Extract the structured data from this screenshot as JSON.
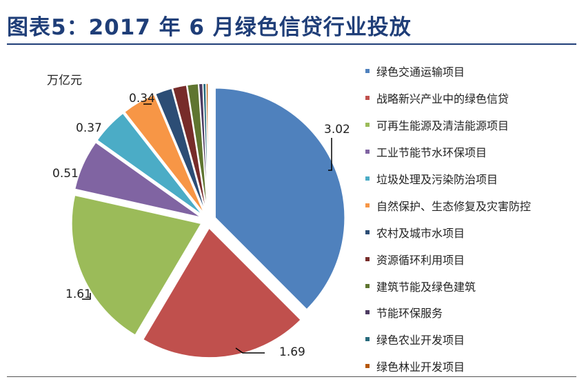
{
  "title": "图表5：2017 年 6 月绿色信贷行业投放",
  "chart_data": {
    "type": "pie",
    "unit_label": "万亿元",
    "legend_position": "right",
    "slices": [
      {
        "label": "绿色交通运输项目",
        "value": 3.02,
        "value_label": "3.02",
        "color": "#4f81bd"
      },
      {
        "label": "战略新兴产业中的绿色信贷",
        "value": 1.69,
        "value_label": "1.69",
        "color": "#c0504d"
      },
      {
        "label": "可再生能源及清洁能源项目",
        "value": 1.61,
        "value_label": "1.61",
        "color": "#9bbb59"
      },
      {
        "label": "工业节能节水环保项目",
        "value": 0.51,
        "value_label": "0.51",
        "color": "#8064a2"
      },
      {
        "label": "垃圾处理及污染防治项目",
        "value": 0.37,
        "value_label": "0.37",
        "color": "#4bacc6"
      },
      {
        "label": "自然保护、生态修复及灾害防控",
        "value": 0.34,
        "value_label": "0.34",
        "color": "#f79646"
      },
      {
        "label": "农村及城市水项目",
        "value": 0.17,
        "value_label": "",
        "color": "#2c4d75"
      },
      {
        "label": "资源循环利用项目",
        "value": 0.14,
        "value_label": "",
        "color": "#772c2a"
      },
      {
        "label": "建筑节能及绿色建筑",
        "value": 0.11,
        "value_label": "",
        "color": "#5f7530"
      },
      {
        "label": "节能环保服务",
        "value": 0.04,
        "value_label": "",
        "color": "#4d3b62"
      },
      {
        "label": "绿色农业开发项目",
        "value": 0.03,
        "value_label": "",
        "color": "#276a7c"
      },
      {
        "label": "绿色林业开发项目",
        "value": 0.02,
        "value_label": "",
        "color": "#b65708"
      }
    ]
  }
}
